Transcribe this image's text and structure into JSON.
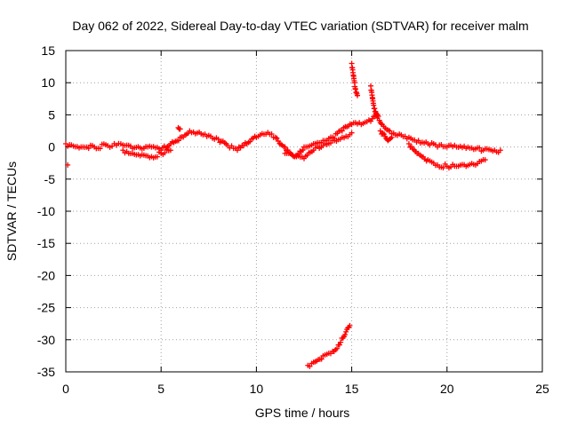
{
  "chart_data": {
    "type": "scatter",
    "title": "Day 062 of 2022, Sidereal Day-to-day VTEC variation (SDTVAR) for receiver malm",
    "xlabel": "GPS time / hours",
    "ylabel": "SDTVAR / TECUs",
    "xlim": [
      0,
      25
    ],
    "ylim": [
      -35,
      15
    ],
    "xticks": [
      0,
      5,
      10,
      15,
      20,
      25
    ],
    "yticks": [
      15,
      10,
      5,
      0,
      -5,
      -10,
      -15,
      -20,
      -25,
      -30,
      -35
    ],
    "grid": true,
    "legend": "none",
    "marker": "plus",
    "color": "#ff0000",
    "series": [
      {
        "name": "main-trace-upper",
        "x": [
          0.0,
          0.3,
          0.8,
          1.5,
          2.2,
          3.0,
          3.5,
          4.0,
          4.5,
          5.0,
          5.5,
          6.0,
          6.5,
          7.0,
          7.5,
          8.0,
          8.5,
          9.0,
          9.5,
          10.0,
          10.5,
          11.0,
          11.5,
          12.0,
          12.5,
          13.0,
          13.5,
          14.0,
          14.5,
          15.0,
          15.5,
          16.0,
          16.3,
          16.6,
          17.0,
          17.5,
          18.0,
          18.5,
          19.0,
          19.5,
          20.0,
          20.5,
          21.0,
          21.5,
          22.0,
          22.5,
          22.8
        ],
        "y": [
          0.5,
          0.3,
          0.0,
          0.0,
          0.2,
          0.3,
          -0.2,
          -0.3,
          0.0,
          -0.5,
          0.5,
          1.5,
          2.5,
          2.3,
          1.8,
          1.2,
          0.2,
          -0.5,
          0.5,
          1.5,
          2.0,
          1.5,
          0.0,
          -1.5,
          0.0,
          0.5,
          1.0,
          1.5,
          2.5,
          3.5,
          3.5,
          4.0,
          5.0,
          3.5,
          2.5,
          2.0,
          1.5,
          1.0,
          0.5,
          0.0,
          0.0,
          0.0,
          -0.2,
          -0.3,
          -0.3,
          -0.5,
          -0.5
        ]
      },
      {
        "name": "main-trace-lower",
        "x": [
          3.0,
          3.5,
          4.0,
          4.5,
          5.0,
          5.5,
          11.5,
          12.0,
          12.5,
          13.0,
          13.5,
          14.0,
          14.5,
          15.0
        ],
        "y": [
          -0.5,
          -1.0,
          -1.2,
          -1.5,
          -1.0,
          -0.5,
          -1.0,
          -1.5,
          -1.8,
          -0.5,
          0.2,
          1.0,
          1.5,
          2.2
        ]
      },
      {
        "name": "diverging-branch",
        "x": [
          18.0,
          18.5,
          19.0,
          19.5,
          20.0,
          20.5,
          21.0,
          21.5,
          22.0
        ],
        "y": [
          0.5,
          -1.0,
          -2.0,
          -2.8,
          -3.0,
          -3.0,
          -3.0,
          -2.8,
          -2.0
        ]
      },
      {
        "name": "spike-15h",
        "x": [
          15.0,
          15.05,
          15.1,
          15.15,
          15.2,
          15.25,
          15.3
        ],
        "y": [
          13.0,
          12.0,
          11.0,
          10.0,
          9.0,
          8.5,
          8.0
        ]
      },
      {
        "name": "spike-16h",
        "x": [
          16.0,
          16.05,
          16.1,
          16.15,
          16.2,
          16.25,
          16.3,
          16.35
        ],
        "y": [
          9.5,
          8.5,
          7.5,
          6.5,
          6.0,
          5.5,
          5.0,
          4.5
        ]
      },
      {
        "name": "bump-17h",
        "x": [
          16.5,
          16.7,
          16.9,
          17.1
        ],
        "y": [
          2.5,
          2.0,
          1.0,
          1.5
        ]
      },
      {
        "name": "negative-segment",
        "x": [
          12.7,
          13.0,
          13.5,
          14.0,
          14.3,
          14.6,
          14.9
        ],
        "y": [
          -34.0,
          -33.5,
          -32.5,
          -31.8,
          -30.8,
          -29.5,
          -27.8
        ]
      },
      {
        "name": "isolated-points",
        "x": [
          0.1,
          5.9,
          6.0
        ],
        "y": [
          -2.8,
          3.0,
          2.8
        ]
      }
    ]
  }
}
